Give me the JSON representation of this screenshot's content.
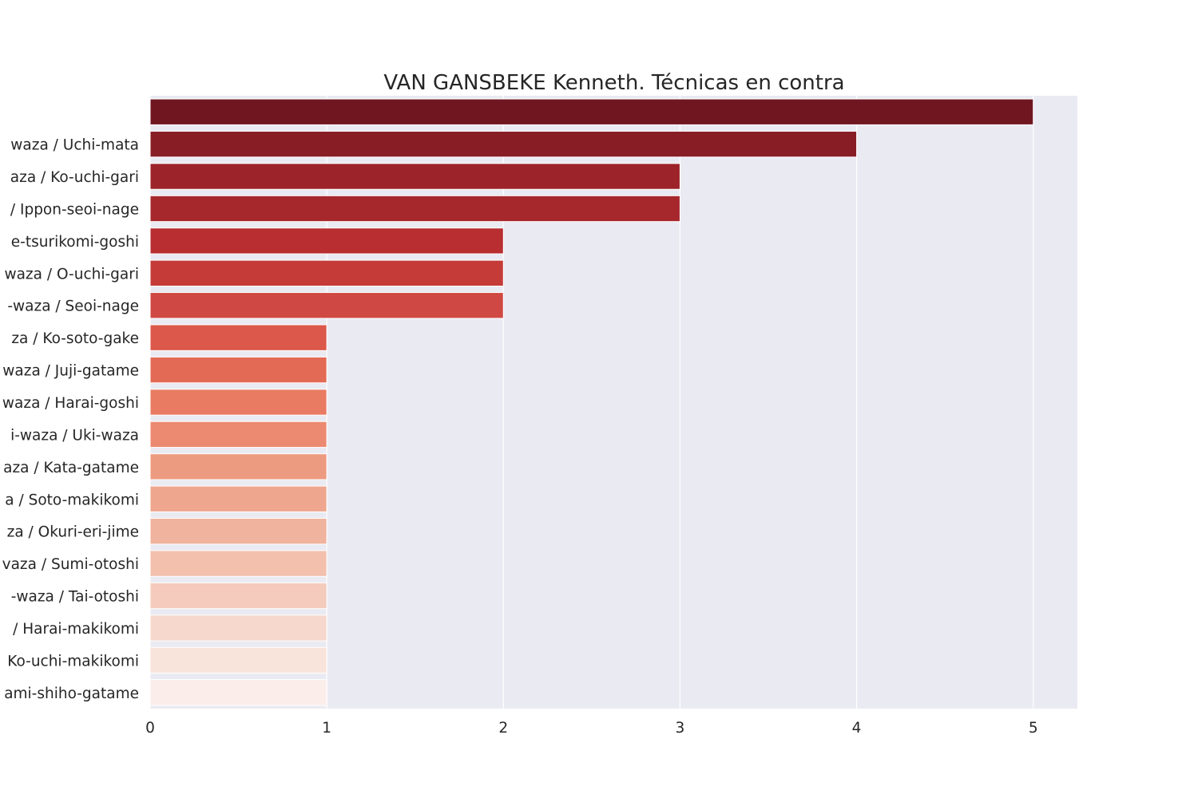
{
  "chart_data": {
    "type": "bar",
    "orientation": "horizontal",
    "title": "VAN GANSBEKE Kenneth. Técnicas en contra",
    "xlabel": "",
    "ylabel": "",
    "categories": [
      "",
      "waza / Uchi-mata",
      "aza / Ko-uchi-gari",
      "/ Ippon-seoi-nage",
      "e-tsurikomi-goshi",
      "waza / O-uchi-gari",
      "-waza / Seoi-nage",
      "za / Ko-soto-gake",
      "waza / Juji-gatame",
      "waza / Harai-goshi",
      "i-waza / Uki-waza",
      "aza / Kata-gatame",
      "a / Soto-makikomi",
      "za / Okuri-eri-jime",
      "vaza / Sumi-otoshi",
      "-waza / Tai-otoshi",
      "/ Harai-makikomi",
      "Ko-uchi-makikomi",
      "ami-shiho-gatame"
    ],
    "values": [
      5,
      4,
      3,
      3,
      2,
      2,
      2,
      1,
      1,
      1,
      1,
      1,
      1,
      1,
      1,
      1,
      1,
      1,
      1
    ],
    "colors": [
      "#6f1620",
      "#891d25",
      "#9c2329",
      "#a6282d",
      "#b82e31",
      "#c43b38",
      "#d04843",
      "#dc584a",
      "#e36a55",
      "#e97b63",
      "#ec8a71",
      "#ed9b80",
      "#eea78e",
      "#f0b39d",
      "#f2c0ad",
      "#f4cbbc",
      "#f6d8cc",
      "#f9e4dc",
      "#fbedea"
    ],
    "xlim": [
      0,
      5.25
    ],
    "xticks": [
      0,
      1,
      2,
      3,
      4,
      5
    ],
    "grid": true
  }
}
